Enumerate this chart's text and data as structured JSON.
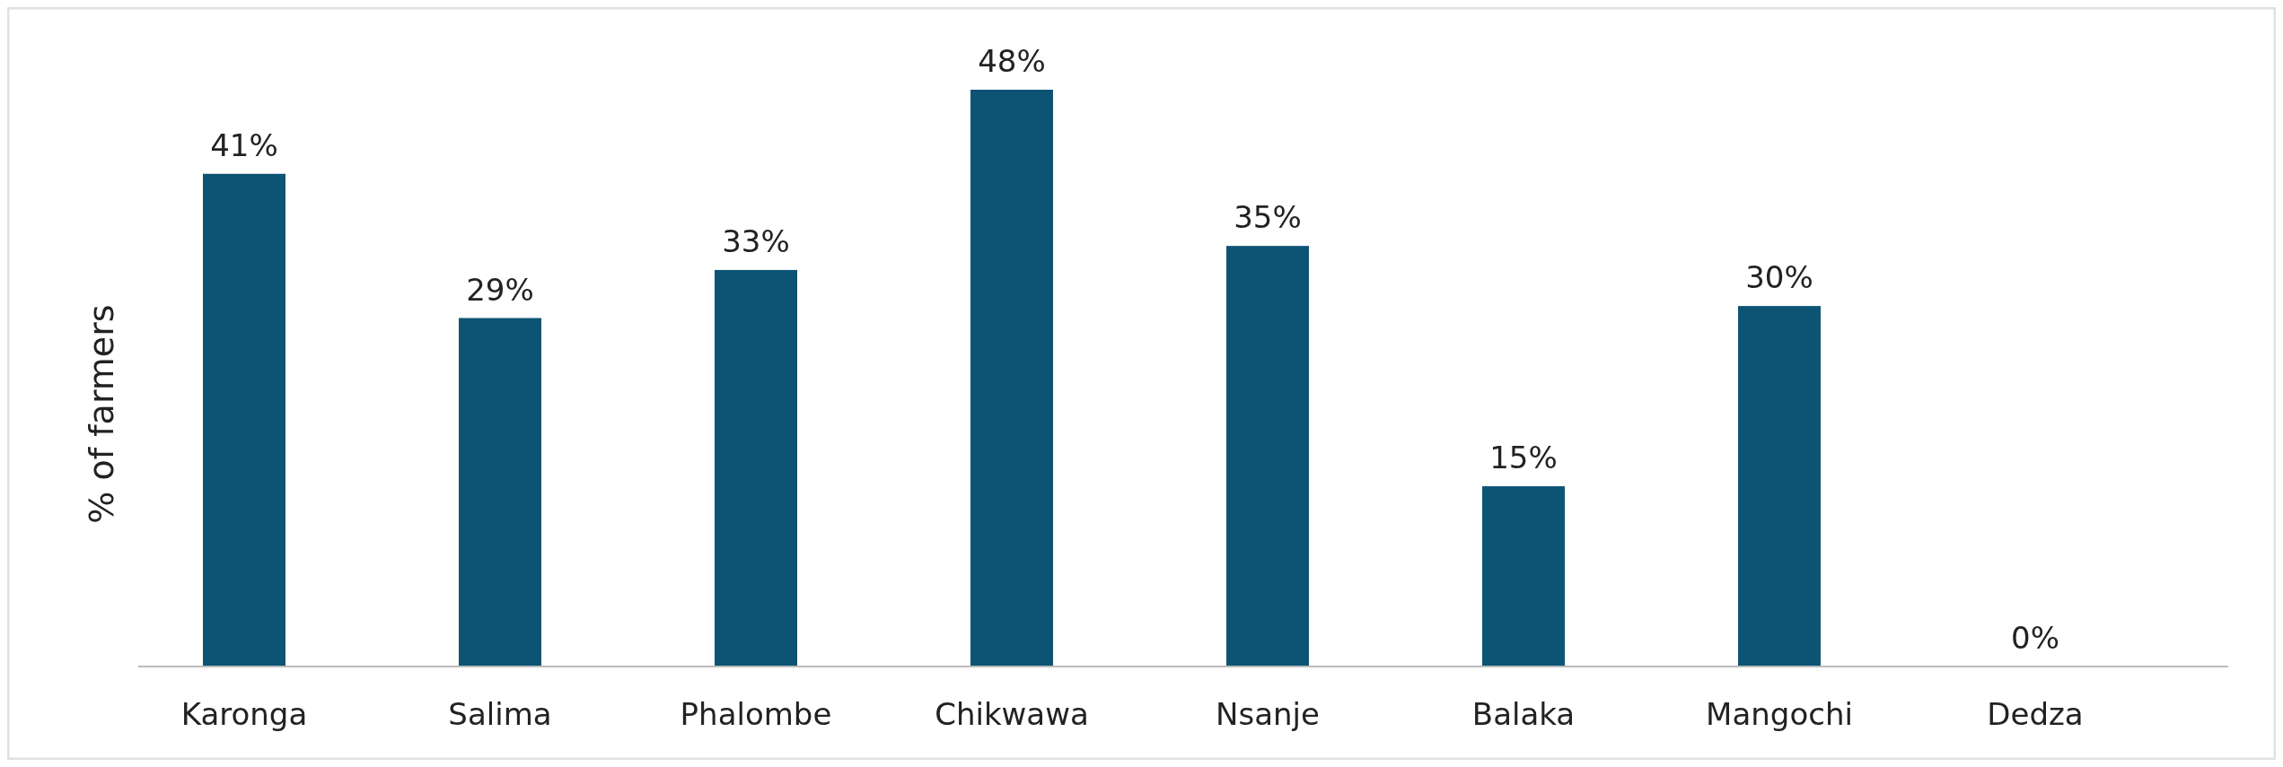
{
  "chart_data": {
    "type": "bar",
    "ylabel": "% of farmers",
    "categories": [
      "Karonga",
      "Salima",
      "Phalombe",
      "Chikwawa",
      "Nsanje",
      "Balaka",
      "Mangochi",
      "Dedza"
    ],
    "values": [
      41,
      29,
      33,
      48,
      35,
      15,
      30,
      0
    ],
    "value_labels": [
      "41%",
      "29%",
      "33%",
      "48%",
      "35%",
      "15%",
      "30%",
      "0%"
    ],
    "color": "#0d5474"
  }
}
